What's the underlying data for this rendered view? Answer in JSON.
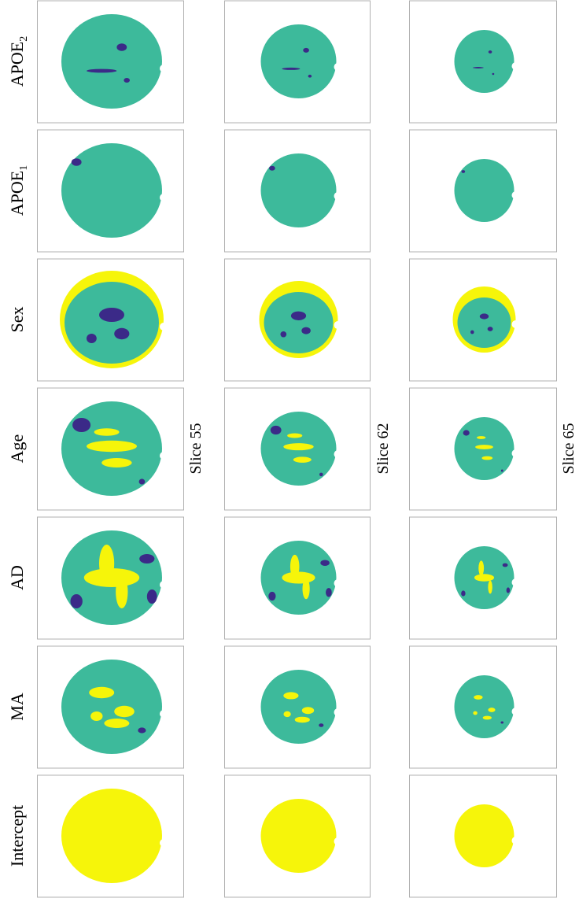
{
  "figure": {
    "rows": [
      "Intercept",
      "MA",
      "AD",
      "Age",
      "Sex",
      {
        "text": "APOE",
        "subscript": "1"
      },
      {
        "text": "APOE",
        "subscript": "2"
      }
    ],
    "slices": [
      "Slice 55",
      "Slice 62",
      "Slice 65"
    ]
  }
}
